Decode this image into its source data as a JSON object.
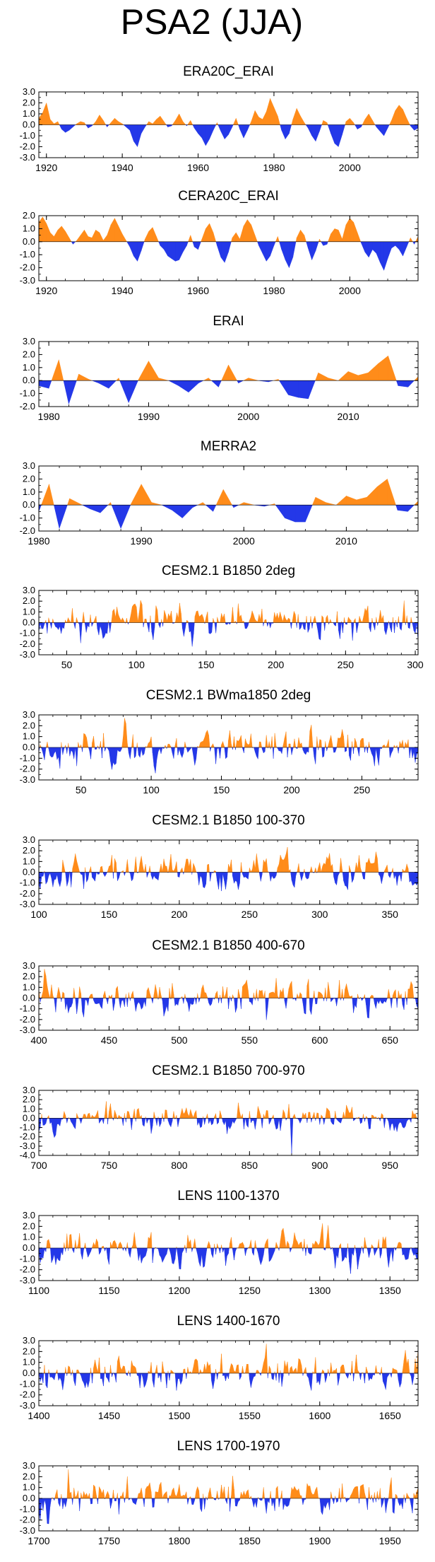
{
  "title": "PSA2 (JJA)",
  "colors": {
    "positive": "#ff8c1a",
    "negative": "#2438e8",
    "axis": "#000000",
    "background": "#ffffff"
  },
  "chart_data": [
    {
      "type": "area",
      "title": "ERA20C_ERAI",
      "xlim": [
        1918,
        2018
      ],
      "ylim": [
        -3.0,
        3.0
      ],
      "yticks": [
        3.0,
        2.0,
        1.0,
        0.0,
        -1.0,
        -2.0,
        -3.0
      ],
      "yticklabels": [
        "3.0",
        "2.0",
        "1.0",
        "0.0",
        "-1.0",
        "-2.0",
        "-3.0"
      ],
      "xticks": [
        1920,
        1940,
        1960,
        1980,
        2000
      ],
      "xticklabels": [
        "1920",
        "1940",
        "1960",
        "1980",
        "2000"
      ],
      "x_start": 1918,
      "x_step": 1,
      "y": [
        0.6,
        1.1,
        2.0,
        0.5,
        0.1,
        0.3,
        -0.4,
        -0.7,
        -0.5,
        -0.2,
        0.1,
        0.3,
        0.2,
        -0.3,
        -0.1,
        0.3,
        0.9,
        0.4,
        -0.2,
        0.2,
        0.6,
        0.3,
        0.1,
        -0.2,
        -0.5,
        -1.5,
        -2.0,
        -0.8,
        -0.2,
        0.3,
        0.1,
        0.5,
        0.8,
        0.3,
        -0.2,
        -0.1,
        0.4,
        1.0,
        0.3,
        -0.1,
        0.4,
        -0.3,
        -0.8,
        -1.2,
        -1.9,
        -1.3,
        -0.5,
        0.2,
        -0.6,
        -1.3,
        -0.9,
        -0.2,
        0.6,
        -0.4,
        -1.2,
        -0.5,
        0.3,
        1.3,
        0.7,
        0.5,
        1.2,
        2.4,
        1.6,
        0.8,
        -0.5,
        -1.3,
        -0.8,
        0.5,
        1.5,
        0.8,
        0.2,
        -0.3,
        -1.0,
        -1.5,
        -0.6,
        0.4,
        0.2,
        -0.8,
        -1.7,
        -2.0,
        -0.9,
        0.3,
        0.6,
        0.2,
        -0.4,
        -0.2,
        0.5,
        1.0,
        0.4,
        -0.2,
        -0.6,
        -1.0,
        -0.3,
        0.4,
        1.3,
        1.8,
        1.4,
        0.6,
        -0.1,
        -0.5,
        -0.3
      ]
    },
    {
      "type": "area",
      "title": "CERA20C_ERAI",
      "xlim": [
        1918,
        2018
      ],
      "ylim": [
        -3.0,
        2.0
      ],
      "yticks": [
        2.0,
        1.0,
        0.0,
        -1.0,
        -2.0,
        -3.0
      ],
      "yticklabels": [
        "2.0",
        "1.0",
        "0.0",
        "-1.0",
        "-2.0",
        "-3.0"
      ],
      "xticks": [
        1920,
        1940,
        1960,
        1980,
        2000
      ],
      "xticklabels": [
        "1920",
        "1940",
        "1960",
        "1980",
        "2000"
      ],
      "x_start": 1918,
      "x_step": 1,
      "y": [
        1.5,
        1.9,
        1.4,
        0.7,
        0.4,
        0.9,
        1.2,
        0.8,
        0.3,
        -0.2,
        0.1,
        0.5,
        0.9,
        0.4,
        0.3,
        0.9,
        0.7,
        0.1,
        0.5,
        1.3,
        1.8,
        1.2,
        0.6,
        0.1,
        -0.4,
        -1.1,
        -1.5,
        -0.7,
        0.2,
        0.8,
        1.1,
        0.4,
        -0.3,
        -0.6,
        -1.1,
        -1.3,
        -1.5,
        -1.4,
        -0.8,
        -0.3,
        0.5,
        -0.4,
        -0.6,
        0.2,
        1.0,
        1.4,
        0.7,
        -0.3,
        -1.2,
        -1.6,
        -0.8,
        0.3,
        0.7,
        0.2,
        1.2,
        1.7,
        1.3,
        0.5,
        -0.3,
        -0.9,
        -1.5,
        -1.1,
        -0.3,
        0.4,
        -0.6,
        -1.4,
        -2.0,
        -1.2,
        0.3,
        0.9,
        0.5,
        -0.5,
        -1.4,
        -0.7,
        0.2,
        -0.3,
        -0.2,
        0.6,
        1.0,
        0.9,
        0.2,
        1.3,
        1.8,
        1.5,
        0.7,
        -0.1,
        -0.8,
        -1.2,
        -0.6,
        -0.9,
        -1.6,
        -2.2,
        -1.3,
        -0.5,
        -0.3,
        -0.6,
        -1.1,
        -0.4,
        0.3,
        -0.2,
        0.4
      ]
    },
    {
      "type": "area",
      "title": "ERAI",
      "xlim": [
        1979,
        2017
      ],
      "ylim": [
        -2.0,
        3.0
      ],
      "yticks": [
        3.0,
        2.0,
        1.0,
        0.0,
        -1.0,
        -2.0
      ],
      "yticklabels": [
        "3.0",
        "2.0",
        "1.0",
        "0.0",
        "-1.0",
        "-2.0"
      ],
      "xticks": [
        1980,
        1990,
        2000,
        2010
      ],
      "xticklabels": [
        "1980",
        "1990",
        "2000",
        "2010"
      ],
      "x_start": 1979,
      "x_step": 1,
      "y": [
        -0.4,
        -0.6,
        1.6,
        -1.8,
        0.5,
        0.1,
        -0.2,
        -0.6,
        0.2,
        -1.7,
        0.1,
        1.5,
        0.2,
        0.0,
        -0.4,
        -0.9,
        -0.2,
        0.2,
        -0.5,
        1.2,
        -0.2,
        0.2,
        0.0,
        -0.1,
        0.1,
        -1.1,
        -1.3,
        -1.4,
        0.6,
        0.2,
        0.0,
        0.7,
        0.4,
        0.6,
        1.3,
        1.9,
        -0.4,
        -0.5,
        0.3
      ]
    },
    {
      "type": "area",
      "title": "MERRA2",
      "xlim": [
        1980,
        2017
      ],
      "ylim": [
        -2.0,
        3.0
      ],
      "yticks": [
        3.0,
        2.0,
        1.0,
        0.0,
        -1.0,
        -2.0
      ],
      "yticklabels": [
        "3.0",
        "2.0",
        "1.0",
        "0.0",
        "-1.0",
        "-2.0"
      ],
      "xticks": [
        1980,
        1990,
        2000,
        2010
      ],
      "xticklabels": [
        "1980",
        "1990",
        "2000",
        "2010"
      ],
      "x_start": 1980,
      "x_step": 1,
      "y": [
        -0.5,
        1.6,
        -1.8,
        0.5,
        0.1,
        -0.3,
        -0.6,
        0.2,
        -1.8,
        0.1,
        1.6,
        0.2,
        0.0,
        -0.4,
        -1.0,
        -0.2,
        0.2,
        -0.5,
        1.2,
        -0.2,
        0.2,
        0.0,
        -0.1,
        0.1,
        -1.0,
        -1.3,
        -1.3,
        0.6,
        0.2,
        0.0,
        0.7,
        0.4,
        0.6,
        1.4,
        2.0,
        -0.4,
        -0.5,
        0.3
      ]
    },
    {
      "type": "area",
      "title": "CESM2.1 B1850 2deg",
      "xlim": [
        30,
        302
      ],
      "ylim": [
        -3.0,
        3.0
      ],
      "noise_seed": 11,
      "yticks": [
        3.0,
        2.0,
        1.0,
        0.0,
        -1.0,
        -2.0,
        -3.0
      ],
      "yticklabels": [
        "3.0",
        "2.0",
        "1.0",
        "0.0",
        "-1.0",
        "-2.0",
        "-3.0"
      ],
      "xticks": [
        50,
        100,
        150,
        200,
        250,
        300
      ],
      "xticklabels": [
        "50",
        "100",
        "150",
        "200",
        "250",
        "300"
      ]
    },
    {
      "type": "area",
      "title": "CESM2.1 BWma1850 2deg",
      "xlim": [
        20,
        290
      ],
      "ylim": [
        -3.0,
        3.0
      ],
      "noise_seed": 23,
      "yticks": [
        3.0,
        2.0,
        1.0,
        0.0,
        -1.0,
        -2.0,
        -3.0
      ],
      "yticklabels": [
        "3.0",
        "2.0",
        "1.0",
        "0.0",
        "-1.0",
        "-2.0",
        "-3.0"
      ],
      "xticks": [
        50,
        100,
        150,
        200,
        250
      ],
      "xticklabels": [
        "50",
        "100",
        "150",
        "200",
        "250"
      ]
    },
    {
      "type": "area",
      "title": "CESM2.1 B1850 100-370",
      "xlim": [
        100,
        370
      ],
      "ylim": [
        -3.0,
        3.0
      ],
      "noise_seed": 37,
      "yticks": [
        3.0,
        2.0,
        1.0,
        0.0,
        -1.0,
        -2.0,
        -3.0
      ],
      "yticklabels": [
        "3.0",
        "2.0",
        "1.0",
        "0.0",
        "-1.0",
        "-2.0",
        "-3.0"
      ],
      "xticks": [
        100,
        150,
        200,
        250,
        300,
        350
      ],
      "xticklabels": [
        "100",
        "150",
        "200",
        "250",
        "300",
        "350"
      ]
    },
    {
      "type": "area",
      "title": "CESM2.1 B1850 400-670",
      "xlim": [
        400,
        670
      ],
      "ylim": [
        -3.0,
        3.0
      ],
      "noise_seed": 41,
      "yticks": [
        3.0,
        2.0,
        1.0,
        0.0,
        -1.0,
        -2.0,
        -3.0
      ],
      "yticklabels": [
        "3.0",
        "2.0",
        "1.0",
        "0.0",
        "-1.0",
        "-2.0",
        "-3.0"
      ],
      "xticks": [
        400,
        450,
        500,
        550,
        600,
        650
      ],
      "xticklabels": [
        "400",
        "450",
        "500",
        "550",
        "600",
        "650"
      ]
    },
    {
      "type": "area",
      "title": "CESM2.1 B1850 700-970",
      "xlim": [
        700,
        970
      ],
      "ylim": [
        -4.0,
        3.0
      ],
      "noise_seed": 53,
      "spike": [
        880,
        -3.8
      ],
      "yticks": [
        3.0,
        2.0,
        1.0,
        0.0,
        -1.0,
        -2.0,
        -3.0,
        -4.0
      ],
      "yticklabels": [
        "3.0",
        "2.0",
        "1.0",
        "0.0",
        "-1.0",
        "-2.0",
        "-3.0",
        "-4.0"
      ],
      "xticks": [
        700,
        750,
        800,
        850,
        900,
        950
      ],
      "xticklabels": [
        "700",
        "750",
        "800",
        "850",
        "900",
        "950"
      ]
    },
    {
      "type": "area",
      "title": "LENS 1100-1370",
      "xlim": [
        1100,
        1370
      ],
      "ylim": [
        -3.0,
        3.0
      ],
      "noise_seed": 67,
      "yticks": [
        3.0,
        2.0,
        1.0,
        0.0,
        -1.0,
        -2.0,
        -3.0
      ],
      "yticklabels": [
        "3.0",
        "2.0",
        "1.0",
        "0.0",
        "-1.0",
        "-2.0",
        "-3.0"
      ],
      "xticks": [
        1100,
        1150,
        1200,
        1250,
        1300,
        1350
      ],
      "xticklabels": [
        "1100",
        "1150",
        "1200",
        "1250",
        "1300",
        "1350"
      ]
    },
    {
      "type": "area",
      "title": "LENS 1400-1670",
      "xlim": [
        1400,
        1670
      ],
      "ylim": [
        -3.0,
        3.0
      ],
      "noise_seed": 79,
      "yticks": [
        3.0,
        2.0,
        1.0,
        0.0,
        -1.0,
        -2.0,
        -3.0
      ],
      "yticklabels": [
        "3.0",
        "2.0",
        "1.0",
        "0.0",
        "-1.0",
        "-2.0",
        "-3.0"
      ],
      "xticks": [
        1400,
        1450,
        1500,
        1550,
        1600,
        1650
      ],
      "xticklabels": [
        "1400",
        "1450",
        "1500",
        "1550",
        "1600",
        "1650"
      ]
    },
    {
      "type": "area",
      "title": "LENS 1700-1970",
      "xlim": [
        1700,
        1970
      ],
      "ylim": [
        -3.0,
        3.0
      ],
      "noise_seed": 97,
      "yticks": [
        3.0,
        2.0,
        1.0,
        0.0,
        -1.0,
        -2.0,
        -3.0
      ],
      "yticklabels": [
        "3.0",
        "2.0",
        "1.0",
        "0.0",
        "-1.0",
        "-2.0",
        "-3.0"
      ],
      "xticks": [
        1700,
        1750,
        1800,
        1850,
        1900,
        1950
      ],
      "xticklabels": [
        "1700",
        "1750",
        "1800",
        "1850",
        "1900",
        "1950"
      ]
    }
  ]
}
